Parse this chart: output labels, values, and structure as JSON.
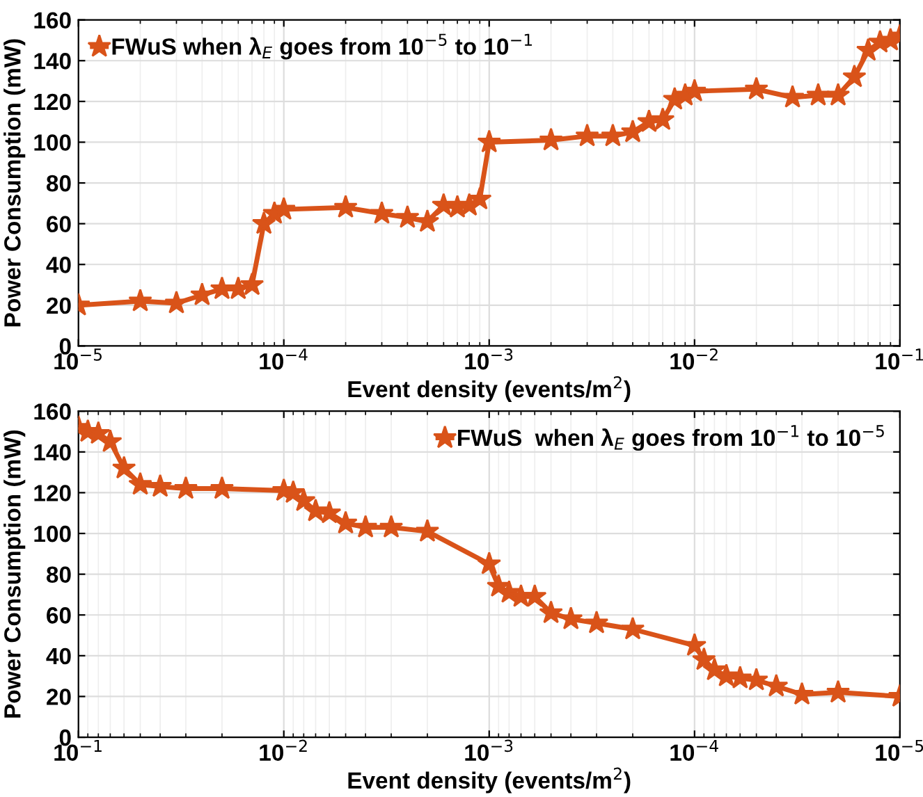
{
  "chart_data": [
    {
      "type": "line",
      "xlabel": "Event density (events/m$^{2}$)",
      "ylabel": "Power Consumption (mW)",
      "log": "x",
      "grid": true,
      "legend": "top left",
      "marker": "star",
      "line_style": "solid",
      "xlim": [
        1e-05,
        0.1
      ],
      "xticks": [
        {
          "value": 1e-05,
          "label": "10$^{−5}$"
        },
        {
          "value": 0.0001,
          "label": "10$^{−4}$"
        },
        {
          "value": 0.001,
          "label": "10$^{−3}$"
        },
        {
          "value": 0.01,
          "label": "10$^{−2}$"
        },
        {
          "value": 0.1,
          "label": "10$^{−1}$"
        }
      ],
      "ylim": [
        0,
        160
      ],
      "yticks": [
        0,
        20,
        40,
        60,
        80,
        100,
        120,
        140,
        160
      ],
      "series": [
        {
          "name": "FWuS when λ$_{E}$ goes from 10$^{−5}$ to 10$^{−1}$",
          "color": "#d95319",
          "x": [
            1e-05,
            2e-05,
            3e-05,
            4e-05,
            5e-05,
            6e-05,
            7e-05,
            8e-05,
            9e-05,
            0.0001,
            0.0002,
            0.0003,
            0.0004,
            0.0005,
            0.0006,
            0.0007,
            0.0008,
            0.0009,
            0.001,
            0.002,
            0.003,
            0.004,
            0.005,
            0.006,
            0.007,
            0.008,
            0.009,
            0.01,
            0.02,
            0.03,
            0.04,
            0.05,
            0.06,
            0.07,
            0.08,
            0.09,
            0.1
          ],
          "values": [
            20,
            22,
            21,
            25,
            28,
            28,
            30,
            60,
            65,
            67,
            68,
            65,
            63,
            61,
            69,
            68,
            69,
            72,
            100,
            101,
            103,
            103,
            105,
            110,
            111,
            121,
            123,
            125,
            126,
            122,
            123,
            123,
            132,
            145,
            149,
            150,
            152
          ]
        }
      ]
    },
    {
      "type": "line",
      "xlabel": "Event density (events/m$^{2}$)",
      "ylabel": "Power Consumption (mW)",
      "log": "x",
      "grid": true,
      "legend": "top right",
      "marker": "star",
      "line_style": "solid",
      "xlim": [
        0.1,
        1e-05
      ],
      "xticks": [
        {
          "value": 0.1,
          "label": "10$^{−1}$"
        },
        {
          "value": 0.01,
          "label": "10$^{−2}$"
        },
        {
          "value": 0.001,
          "label": "10$^{−3}$"
        },
        {
          "value": 0.0001,
          "label": "10$^{−4}$"
        },
        {
          "value": 1e-05,
          "label": "10$^{−5}$"
        }
      ],
      "ylim": [
        0,
        160
      ],
      "yticks": [
        0,
        20,
        40,
        60,
        80,
        100,
        120,
        140,
        160
      ],
      "series": [
        {
          "name": "FWuS  when λ$_{E}$ goes from 10$^{−1}$ to 10$^{−5}$",
          "color": "#d95319",
          "x": [
            0.1,
            0.09,
            0.08,
            0.07,
            0.06,
            0.05,
            0.04,
            0.03,
            0.02,
            0.01,
            0.009,
            0.008,
            0.007,
            0.006,
            0.005,
            0.004,
            0.003,
            0.002,
            0.001,
            0.0009,
            0.0008,
            0.0007,
            0.0006,
            0.0005,
            0.0004,
            0.0003,
            0.0002,
            0.0001,
            9e-05,
            8e-05,
            7e-05,
            6e-05,
            5e-05,
            4e-05,
            3e-05,
            2e-05,
            1e-05
          ],
          "values": [
            152,
            150,
            149,
            145,
            132,
            124,
            123,
            122,
            122,
            121,
            120,
            116,
            111,
            110,
            105,
            103,
            103,
            101,
            85,
            74,
            71,
            69,
            69,
            61,
            58,
            56,
            53,
            45,
            38,
            33,
            30,
            29,
            28,
            25,
            21,
            22,
            20
          ]
        }
      ]
    }
  ]
}
